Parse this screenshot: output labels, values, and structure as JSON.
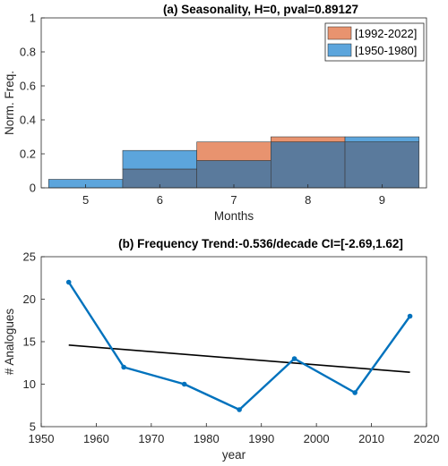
{
  "chart_data": [
    {
      "type": "bar",
      "title": "(a)  Seasonality, H=0, pval=0.89127",
      "xlabel": "Months",
      "ylabel": "Norm. Freq.",
      "categories": [
        "5",
        "6",
        "7",
        "8",
        "9"
      ],
      "xlim": [
        4.4,
        9.6
      ],
      "ylim": [
        0,
        1
      ],
      "yticks": [
        "0",
        "0.2",
        "0.4",
        "0.6",
        "0.8",
        "1"
      ],
      "legend_position": "top-right",
      "grid": false,
      "series": [
        {
          "name": "[1992-2022]",
          "color": "#E8936F",
          "values": [
            0.0,
            0.11,
            0.27,
            0.3,
            0.27
          ]
        },
        {
          "name": "[1950-1980]",
          "color": "#5CA5DC",
          "values": [
            0.05,
            0.22,
            0.16,
            0.27,
            0.3
          ]
        }
      ],
      "overlap_color": "#5A7A9C"
    },
    {
      "type": "line",
      "title": "(b) Frequency Trend:-0.536/decade CI=[-2.69,1.62]",
      "xlabel": "year",
      "ylabel": "# Analogues",
      "xlim": [
        1950,
        2020
      ],
      "ylim": [
        5,
        25
      ],
      "xticks": [
        "1950",
        "1960",
        "1970",
        "1980",
        "1990",
        "2000",
        "2010",
        "2020"
      ],
      "yticks": [
        "5",
        "10",
        "15",
        "20",
        "25"
      ],
      "grid": false,
      "series": [
        {
          "color": "#0072BD",
          "x": [
            1955,
            1965,
            1976,
            1986,
            1996,
            2007,
            2017
          ],
          "y": [
            22,
            12,
            10,
            7,
            13,
            9,
            18
          ]
        }
      ],
      "trend": {
        "color": "#000000",
        "x": [
          1955,
          2017
        ],
        "y": [
          14.6,
          11.4
        ]
      }
    }
  ]
}
